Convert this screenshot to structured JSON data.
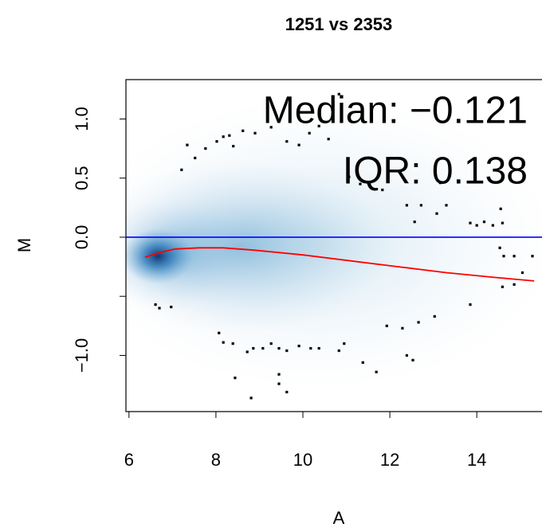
{
  "chart_data": {
    "type": "scatter",
    "title": "1251 vs 2353",
    "x_label": "A",
    "y_label": "M",
    "annotations": [
      "Median: −0.121",
      "IQR: 0.138"
    ],
    "xlim": [
      5.93,
      15.5
    ],
    "ylim": [
      -1.475,
      1.333
    ],
    "xticks": [
      6,
      8,
      10,
      12,
      14
    ],
    "yticks": [
      {
        "value": -1,
        "label": "−1.0"
      },
      {
        "value": -0.5,
        "label": null
      },
      {
        "value": 0,
        "label": "0.0"
      },
      {
        "value": 0.5,
        "label": "0.5"
      },
      {
        "value": 1,
        "label": "1.0"
      }
    ],
    "color": "#000000",
    "x": [
      7.21,
      7.34,
      7.52,
      7.76,
      8.02,
      8.17,
      8.31,
      8.4,
      8.62,
      8.9,
      9.27,
      9.63,
      9.91,
      10.15,
      10.37,
      10.59,
      10.83,
      11.06,
      11.32,
      11.83,
      12.39,
      12.57,
      12.72,
      13.08,
      13.16,
      13.3,
      13.85,
      14.0,
      14.17,
      14.37,
      14.55,
      14.59,
      14.53,
      14.62,
      14.86,
      15.28,
      15.05,
      14.59,
      14.86,
      13.85,
      13.03,
      12.66,
      12.29,
      11.93,
      12.39,
      12.53,
      11.69,
      11.38,
      10.95,
      10.83,
      10.37,
      10.18,
      9.91,
      9.63,
      9.45,
      9.27,
      9.08,
      8.86,
      8.72,
      8.39,
      8.17,
      8.07,
      8.44,
      8.81,
      9.45,
      9.45,
      9.63,
      6.61,
      6.7,
      6.97
    ],
    "values": [
      0.57,
      0.78,
      0.67,
      0.75,
      0.81,
      0.85,
      0.86,
      0.77,
      0.9,
      0.88,
      0.93,
      0.81,
      0.78,
      0.88,
      0.94,
      0.83,
      1.21,
      0.51,
      0.45,
      0.4,
      0.27,
      0.13,
      0.27,
      0.2,
      0.46,
      0.27,
      0.12,
      0.1,
      0.13,
      0.1,
      0.24,
      0.12,
      -0.09,
      -0.16,
      -0.16,
      -0.16,
      -0.3,
      -0.42,
      -0.4,
      -0.57,
      -0.67,
      -0.72,
      -0.77,
      -0.75,
      -1.0,
      -1.04,
      -1.14,
      -1.06,
      -0.9,
      -0.96,
      -0.94,
      -0.94,
      -0.92,
      -0.96,
      -0.94,
      -0.9,
      -0.94,
      -0.94,
      -0.97,
      -0.9,
      -0.89,
      -0.81,
      -1.19,
      -1.36,
      -1.16,
      -1.24,
      -1.31,
      -0.57,
      -0.6,
      -0.59
    ],
    "hline": {
      "value": 0,
      "color": "#0000ff"
    },
    "loess": {
      "color": "#ff0000",
      "x": [
        6.37,
        6.7,
        7.06,
        7.61,
        8.17,
        8.9,
        10.0,
        11.1,
        12.2,
        13.3,
        14.4,
        15.32
      ],
      "values": [
        -0.17,
        -0.13,
        -0.1,
        -0.09,
        -0.09,
        -0.11,
        -0.15,
        -0.2,
        -0.25,
        -0.3,
        -0.34,
        -0.37
      ]
    }
  }
}
